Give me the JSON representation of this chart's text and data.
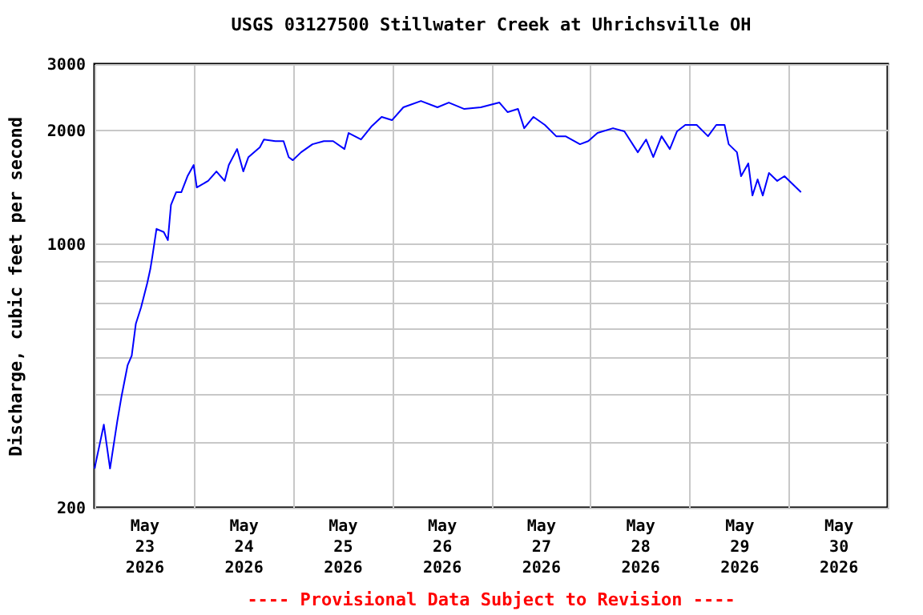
{
  "chart_data": {
    "type": "line",
    "title": "USGS 03127500 Stillwater Creek at Uhrichsville OH",
    "ylabel": "Discharge, cubic feet per second",
    "annotations": [
      "---- Provisional Data Subject to Revision ----"
    ],
    "log": "y",
    "grid": true,
    "marker": "none",
    "line_style": "solid",
    "xlim": [
      "2026-05-23T00:00",
      "2026-05-31T00:00"
    ],
    "xticks": [
      {
        "value": "2026-05-23T00:00",
        "label": null
      },
      {
        "value": "2026-05-23T12:00",
        "label": "May\n23\n2026"
      },
      {
        "value": "2026-05-24T00:00",
        "label": null
      },
      {
        "value": "2026-05-24T12:00",
        "label": "May\n24\n2026"
      },
      {
        "value": "2026-05-25T00:00",
        "label": null
      },
      {
        "value": "2026-05-25T12:00",
        "label": "May\n25\n2026"
      },
      {
        "value": "2026-05-26T00:00",
        "label": null
      },
      {
        "value": "2026-05-26T12:00",
        "label": "May\n26\n2026"
      },
      {
        "value": "2026-05-27T00:00",
        "label": null
      },
      {
        "value": "2026-05-27T12:00",
        "label": "May\n27\n2026"
      },
      {
        "value": "2026-05-28T00:00",
        "label": null
      },
      {
        "value": "2026-05-28T12:00",
        "label": "May\n28\n2026"
      },
      {
        "value": "2026-05-29T00:00",
        "label": null
      },
      {
        "value": "2026-05-29T12:00",
        "label": "May\n29\n2026"
      },
      {
        "value": "2026-05-30T00:00",
        "label": null
      },
      {
        "value": "2026-05-30T12:00",
        "label": "May\n30\n2026"
      },
      {
        "value": "2026-05-31T00:00",
        "label": null
      }
    ],
    "ylim": [
      200,
      3000
    ],
    "yticks": [
      200,
      {
        "value": 300,
        "label": null
      },
      {
        "value": 400,
        "label": null
      },
      {
        "value": 500,
        "label": null
      },
      {
        "value": 600,
        "label": null
      },
      {
        "value": 700,
        "label": null
      },
      {
        "value": 800,
        "label": null
      },
      {
        "value": 900,
        "label": null
      },
      1000,
      2000,
      3000
    ],
    "x": [
      "2026-05-23T00:00",
      "2026-05-23T02:15",
      "2026-05-23T03:45",
      "2026-05-23T05:30",
      "2026-05-23T06:30",
      "2026-05-23T08:00",
      "2026-05-23T09:00",
      "2026-05-23T10:00",
      "2026-05-23T11:15",
      "2026-05-23T12:45",
      "2026-05-23T13:30",
      "2026-05-23T14:00",
      "2026-05-23T15:00",
      "2026-05-23T16:45",
      "2026-05-23T17:45",
      "2026-05-23T18:30",
      "2026-05-23T19:45",
      "2026-05-23T21:00",
      "2026-05-23T22:30",
      "2026-05-24T00:00",
      "2026-05-24T00:45",
      "2026-05-24T03:30",
      "2026-05-24T05:30",
      "2026-05-24T07:30",
      "2026-05-24T08:30",
      "2026-05-24T10:30",
      "2026-05-24T12:00",
      "2026-05-24T13:15",
      "2026-05-24T16:00",
      "2026-05-24T17:00",
      "2026-05-24T19:45",
      "2026-05-24T21:45",
      "2026-05-24T23:00",
      "2026-05-25T00:00",
      "2026-05-25T02:00",
      "2026-05-25T04:45",
      "2026-05-25T07:30",
      "2026-05-25T09:45",
      "2026-05-25T12:30",
      "2026-05-25T13:30",
      "2026-05-25T16:30",
      "2026-05-25T19:00",
      "2026-05-25T21:30",
      "2026-05-26T00:00",
      "2026-05-26T02:45",
      "2026-05-26T07:00",
      "2026-05-26T11:00",
      "2026-05-26T13:45",
      "2026-05-26T17:30",
      "2026-05-26T21:30",
      "2026-05-27T02:00",
      "2026-05-27T04:00",
      "2026-05-27T06:30",
      "2026-05-27T08:00",
      "2026-05-27T10:15",
      "2026-05-27T13:00",
      "2026-05-27T15:45",
      "2026-05-27T18:00",
      "2026-05-27T21:30",
      "2026-05-27T23:30",
      "2026-05-28T01:45",
      "2026-05-28T05:30",
      "2026-05-28T08:15",
      "2026-05-28T11:30",
      "2026-05-28T13:30",
      "2026-05-28T15:15",
      "2026-05-28T17:15",
      "2026-05-28T19:15",
      "2026-05-28T21:00",
      "2026-05-28T23:00",
      "2026-05-29T01:45",
      "2026-05-29T04:30",
      "2026-05-29T06:30",
      "2026-05-29T08:30",
      "2026-05-29T09:30",
      "2026-05-29T11:30",
      "2026-05-29T12:30",
      "2026-05-29T14:15",
      "2026-05-29T15:15",
      "2026-05-29T16:30",
      "2026-05-29T17:45",
      "2026-05-29T19:15",
      "2026-05-29T21:15",
      "2026-05-29T23:00",
      "2026-05-30T01:00",
      "2026-05-30T03:00"
    ],
    "series": [
      {
        "color": "#0000ff",
        "values": [
          254,
          332,
          254,
          339,
          393,
          477,
          506,
          615,
          679,
          787,
          858,
          928,
          1097,
          1076,
          1024,
          1270,
          1372,
          1372,
          1513,
          1620,
          1413,
          1470,
          1558,
          1470,
          1620,
          1786,
          1558,
          1700,
          1805,
          1893,
          1874,
          1874,
          1700,
          1668,
          1751,
          1839,
          1874,
          1874,
          1786,
          1970,
          1893,
          2048,
          2173,
          2130,
          2304,
          2395,
          2304,
          2372,
          2281,
          2304,
          2372,
          2237,
          2281,
          2028,
          2173,
          2069,
          1931,
          1931,
          1839,
          1874,
          1970,
          2028,
          1990,
          1751,
          1893,
          1700,
          1931,
          1786,
          1990,
          2069,
          2069,
          1931,
          2069,
          2069,
          1839,
          1751,
          1513,
          1636,
          1345,
          1484,
          1345,
          1543,
          1470,
          1513,
          1441,
          1372
        ]
      }
    ]
  }
}
